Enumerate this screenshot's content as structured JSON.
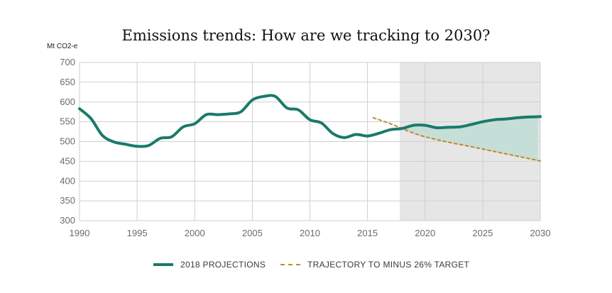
{
  "chart_data": {
    "type": "line",
    "title": "Emissions trends: How are we tracking to 2030?",
    "ylabel": "Mt CO2-e",
    "xlabel": "",
    "xlim": [
      1990,
      2030
    ],
    "ylim": [
      300,
      700
    ],
    "x_ticks": [
      "1990",
      "1995",
      "2000",
      "2005",
      "2010",
      "2015",
      "2020",
      "2025",
      "2030"
    ],
    "y_ticks": [
      "300",
      "350",
      "400",
      "450",
      "500",
      "550",
      "600",
      "650",
      "700"
    ],
    "grid": true,
    "shaded_region": {
      "x_start": 2017.8,
      "x_end": 2030,
      "color": "#e6e6e6"
    },
    "gap_fill_color": "#c3ddd6",
    "legend_position": "bottom",
    "series": [
      {
        "name": "2018 PROJECTIONS",
        "color": "#1a7a6a",
        "style": "solid",
        "x": [
          1990,
          1991,
          1992,
          1993,
          1994,
          1995,
          1996,
          1997,
          1998,
          1999,
          2000,
          2001,
          2002,
          2003,
          2004,
          2005,
          2006,
          2007,
          2008,
          2009,
          2010,
          2011,
          2012,
          2013,
          2014,
          2015,
          2016,
          2017,
          2018,
          2019,
          2020,
          2021,
          2022,
          2023,
          2024,
          2025,
          2026,
          2027,
          2028,
          2029,
          2030
        ],
        "y": [
          583,
          558,
          515,
          499,
          493,
          488,
          490,
          508,
          512,
          537,
          545,
          568,
          568,
          570,
          575,
          605,
          614,
          614,
          585,
          580,
          555,
          547,
          520,
          510,
          518,
          514,
          521,
          530,
          533,
          541,
          541,
          535,
          536,
          537,
          543,
          550,
          555,
          557,
          560,
          562,
          563
        ]
      },
      {
        "name": "TRAJECTORY TO MINUS 26% TARGET",
        "color": "#c08a2e",
        "style": "dashed",
        "x": [
          2015.5,
          2017,
          2020,
          2025,
          2030
        ],
        "y": [
          560,
          545,
          512,
          481,
          451
        ]
      }
    ]
  }
}
